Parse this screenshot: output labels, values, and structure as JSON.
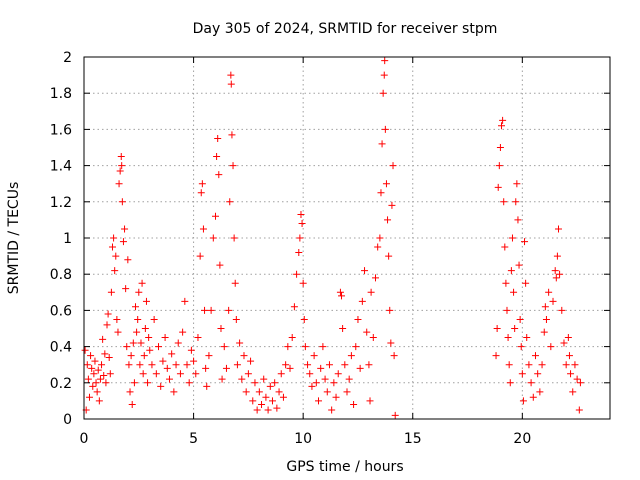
{
  "chart_data": {
    "type": "scatter",
    "title": "Day 305 of 2024, SRMTID for receiver stpm",
    "xlabel": "GPS time / hours",
    "ylabel": "SRMTID / TECUs",
    "xlim": [
      0,
      24
    ],
    "ylim": [
      0,
      2
    ],
    "xticks": [
      0,
      5,
      10,
      15,
      20
    ],
    "xtick_labels": [
      "0",
      "5",
      "10",
      "15",
      "20"
    ],
    "yticks": [
      0,
      0.2,
      0.4,
      0.6,
      0.8,
      1,
      1.2,
      1.4,
      1.6,
      1.8,
      2
    ],
    "ytick_labels": [
      "0",
      "0.2",
      "0.4",
      "0.6",
      "0.8",
      "1",
      "1.2",
      "1.4",
      "1.6",
      "1.8",
      "2"
    ],
    "grid": true,
    "marker": "+",
    "marker_color": "#ff0000",
    "series": [
      {
        "name": "SRMTID",
        "points": [
          [
            0.05,
            0.38
          ],
          [
            0.1,
            0.05
          ],
          [
            0.15,
            0.3
          ],
          [
            0.2,
            0.22
          ],
          [
            0.25,
            0.12
          ],
          [
            0.3,
            0.35
          ],
          [
            0.35,
            0.28
          ],
          [
            0.4,
            0.18
          ],
          [
            0.45,
            0.25
          ],
          [
            0.5,
            0.32
          ],
          [
            0.55,
            0.2
          ],
          [
            0.6,
            0.15
          ],
          [
            0.65,
            0.27
          ],
          [
            0.7,
            0.1
          ],
          [
            0.75,
            0.22
          ],
          [
            0.8,
            0.3
          ],
          [
            0.85,
            0.44
          ],
          [
            0.9,
            0.24
          ],
          [
            0.95,
            0.36
          ],
          [
            1.0,
            0.2
          ],
          [
            1.05,
            0.52
          ],
          [
            1.1,
            0.58
          ],
          [
            1.15,
            0.34
          ],
          [
            1.2,
            0.25
          ],
          [
            1.25,
            0.7
          ],
          [
            1.3,
            0.95
          ],
          [
            1.35,
            1.0
          ],
          [
            1.4,
            0.82
          ],
          [
            1.45,
            0.9
          ],
          [
            1.5,
            0.55
          ],
          [
            1.55,
            0.48
          ],
          [
            1.6,
            1.3
          ],
          [
            1.65,
            1.37
          ],
          [
            1.7,
            1.45
          ],
          [
            1.72,
            1.4
          ],
          [
            1.75,
            1.2
          ],
          [
            1.8,
            0.98
          ],
          [
            1.85,
            1.05
          ],
          [
            1.9,
            0.72
          ],
          [
            1.95,
            0.4
          ],
          [
            2.0,
            0.88
          ],
          [
            2.05,
            0.3
          ],
          [
            2.1,
            0.15
          ],
          [
            2.15,
            0.35
          ],
          [
            2.2,
            0.08
          ],
          [
            2.25,
            0.42
          ],
          [
            2.3,
            0.2
          ],
          [
            2.35,
            0.62
          ],
          [
            2.4,
            0.48
          ],
          [
            2.45,
            0.55
          ],
          [
            2.5,
            0.7
          ],
          [
            2.55,
            0.3
          ],
          [
            2.6,
            0.42
          ],
          [
            2.65,
            0.75
          ],
          [
            2.7,
            0.25
          ],
          [
            2.75,
            0.35
          ],
          [
            2.8,
            0.5
          ],
          [
            2.85,
            0.65
          ],
          [
            2.9,
            0.2
          ],
          [
            2.95,
            0.45
          ],
          [
            3.0,
            0.38
          ],
          [
            3.1,
            0.3
          ],
          [
            3.2,
            0.55
          ],
          [
            3.3,
            0.25
          ],
          [
            3.4,
            0.4
          ],
          [
            3.5,
            0.18
          ],
          [
            3.6,
            0.32
          ],
          [
            3.7,
            0.45
          ],
          [
            3.8,
            0.28
          ],
          [
            3.9,
            0.22
          ],
          [
            4.0,
            0.36
          ],
          [
            4.1,
            0.15
          ],
          [
            4.2,
            0.3
          ],
          [
            4.3,
            0.42
          ],
          [
            4.4,
            0.25
          ],
          [
            4.5,
            0.48
          ],
          [
            4.6,
            0.65
          ],
          [
            4.7,
            0.3
          ],
          [
            4.8,
            0.2
          ],
          [
            4.9,
            0.38
          ],
          [
            5.0,
            0.32
          ],
          [
            5.1,
            0.25
          ],
          [
            5.2,
            0.45
          ],
          [
            5.3,
            0.9
          ],
          [
            5.35,
            1.25
          ],
          [
            5.4,
            1.3
          ],
          [
            5.45,
            1.05
          ],
          [
            5.5,
            0.6
          ],
          [
            5.55,
            0.28
          ],
          [
            5.6,
            0.18
          ],
          [
            5.7,
            0.35
          ],
          [
            5.8,
            0.6
          ],
          [
            5.9,
            1.0
          ],
          [
            6.0,
            1.12
          ],
          [
            6.05,
            1.45
          ],
          [
            6.1,
            1.55
          ],
          [
            6.15,
            1.35
          ],
          [
            6.2,
            0.85
          ],
          [
            6.25,
            0.5
          ],
          [
            6.3,
            0.22
          ],
          [
            6.4,
            0.4
          ],
          [
            6.5,
            0.28
          ],
          [
            6.6,
            0.6
          ],
          [
            6.65,
            1.2
          ],
          [
            6.7,
            1.9
          ],
          [
            6.72,
            1.85
          ],
          [
            6.75,
            1.57
          ],
          [
            6.8,
            1.4
          ],
          [
            6.85,
            1.0
          ],
          [
            6.9,
            0.75
          ],
          [
            6.95,
            0.55
          ],
          [
            7.0,
            0.3
          ],
          [
            7.1,
            0.42
          ],
          [
            7.2,
            0.22
          ],
          [
            7.3,
            0.35
          ],
          [
            7.4,
            0.15
          ],
          [
            7.5,
            0.25
          ],
          [
            7.6,
            0.32
          ],
          [
            7.7,
            0.1
          ],
          [
            7.8,
            0.2
          ],
          [
            7.9,
            0.05
          ],
          [
            8.0,
            0.15
          ],
          [
            8.1,
            0.08
          ],
          [
            8.2,
            0.22
          ],
          [
            8.3,
            0.12
          ],
          [
            8.4,
            0.05
          ],
          [
            8.5,
            0.18
          ],
          [
            8.6,
            0.1
          ],
          [
            8.7,
            0.2
          ],
          [
            8.8,
            0.06
          ],
          [
            8.9,
            0.15
          ],
          [
            9.0,
            0.25
          ],
          [
            9.1,
            0.12
          ],
          [
            9.2,
            0.3
          ],
          [
            9.3,
            0.4
          ],
          [
            9.4,
            0.28
          ],
          [
            9.5,
            0.45
          ],
          [
            9.6,
            0.62
          ],
          [
            9.7,
            0.8
          ],
          [
            9.8,
            0.92
          ],
          [
            9.85,
            1.0
          ],
          [
            9.9,
            1.13
          ],
          [
            9.95,
            1.08
          ],
          [
            10.0,
            0.75
          ],
          [
            10.05,
            0.55
          ],
          [
            10.1,
            0.4
          ],
          [
            10.2,
            0.3
          ],
          [
            10.3,
            0.25
          ],
          [
            10.4,
            0.18
          ],
          [
            10.5,
            0.35
          ],
          [
            10.6,
            0.2
          ],
          [
            10.7,
            0.1
          ],
          [
            10.8,
            0.28
          ],
          [
            10.9,
            0.4
          ],
          [
            11.0,
            0.22
          ],
          [
            11.1,
            0.15
          ],
          [
            11.2,
            0.3
          ],
          [
            11.3,
            0.05
          ],
          [
            11.4,
            0.2
          ],
          [
            11.5,
            0.12
          ],
          [
            11.6,
            0.25
          ],
          [
            11.7,
            0.7
          ],
          [
            11.75,
            0.68
          ],
          [
            11.8,
            0.5
          ],
          [
            11.9,
            0.3
          ],
          [
            12.0,
            0.15
          ],
          [
            12.1,
            0.22
          ],
          [
            12.2,
            0.35
          ],
          [
            12.3,
            0.08
          ],
          [
            12.4,
            0.4
          ],
          [
            12.5,
            0.55
          ],
          [
            12.6,
            0.28
          ],
          [
            12.7,
            0.65
          ],
          [
            12.8,
            0.82
          ],
          [
            12.9,
            0.48
          ],
          [
            13.0,
            0.3
          ],
          [
            13.05,
            0.1
          ],
          [
            13.1,
            0.7
          ],
          [
            13.2,
            0.45
          ],
          [
            13.3,
            0.78
          ],
          [
            13.4,
            0.95
          ],
          [
            13.5,
            1.0
          ],
          [
            13.55,
            1.25
          ],
          [
            13.6,
            1.52
          ],
          [
            13.65,
            1.8
          ],
          [
            13.7,
            1.9
          ],
          [
            13.72,
            1.98
          ],
          [
            13.75,
            1.6
          ],
          [
            13.8,
            1.3
          ],
          [
            13.85,
            1.1
          ],
          [
            13.9,
            0.9
          ],
          [
            13.95,
            0.6
          ],
          [
            14.0,
            0.42
          ],
          [
            14.05,
            1.18
          ],
          [
            14.1,
            1.4
          ],
          [
            14.15,
            0.35
          ],
          [
            14.2,
            0.02
          ],
          [
            18.8,
            0.35
          ],
          [
            18.85,
            0.5
          ],
          [
            18.9,
            1.28
          ],
          [
            18.95,
            1.4
          ],
          [
            19.0,
            1.5
          ],
          [
            19.05,
            1.62
          ],
          [
            19.1,
            1.65
          ],
          [
            19.15,
            1.2
          ],
          [
            19.2,
            0.95
          ],
          [
            19.25,
            0.75
          ],
          [
            19.3,
            0.6
          ],
          [
            19.35,
            0.45
          ],
          [
            19.4,
            0.3
          ],
          [
            19.45,
            0.2
          ],
          [
            19.5,
            0.82
          ],
          [
            19.55,
            1.0
          ],
          [
            19.6,
            0.7
          ],
          [
            19.65,
            0.5
          ],
          [
            19.7,
            1.2
          ],
          [
            19.75,
            1.3
          ],
          [
            19.8,
            1.1
          ],
          [
            19.85,
            0.85
          ],
          [
            19.9,
            0.55
          ],
          [
            19.95,
            0.4
          ],
          [
            20.0,
            0.25
          ],
          [
            20.05,
            0.1
          ],
          [
            20.1,
            0.98
          ],
          [
            20.15,
            0.75
          ],
          [
            20.2,
            0.45
          ],
          [
            20.3,
            0.3
          ],
          [
            20.4,
            0.2
          ],
          [
            20.5,
            0.12
          ],
          [
            20.6,
            0.35
          ],
          [
            20.7,
            0.25
          ],
          [
            20.8,
            0.15
          ],
          [
            20.9,
            0.3
          ],
          [
            21.0,
            0.48
          ],
          [
            21.05,
            0.62
          ],
          [
            21.1,
            0.55
          ],
          [
            21.2,
            0.7
          ],
          [
            21.3,
            0.4
          ],
          [
            21.4,
            0.65
          ],
          [
            21.5,
            0.82
          ],
          [
            21.55,
            0.78
          ],
          [
            21.6,
            0.9
          ],
          [
            21.65,
            1.05
          ],
          [
            21.7,
            0.8
          ],
          [
            21.8,
            0.6
          ],
          [
            21.9,
            0.42
          ],
          [
            22.0,
            0.3
          ],
          [
            22.1,
            0.45
          ],
          [
            22.15,
            0.35
          ],
          [
            22.2,
            0.25
          ],
          [
            22.3,
            0.15
          ],
          [
            22.4,
            0.3
          ],
          [
            22.5,
            0.22
          ],
          [
            22.6,
            0.05
          ],
          [
            22.65,
            0.2
          ]
        ]
      }
    ]
  }
}
